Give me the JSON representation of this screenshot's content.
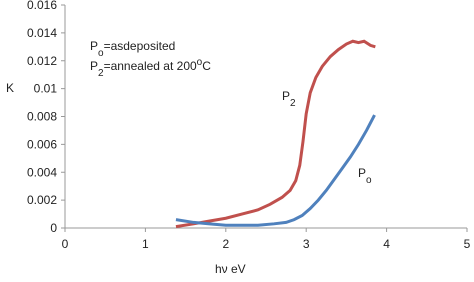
{
  "chart_data": {
    "type": "line",
    "x_label": "hν eV",
    "y_label": "K",
    "xlim": [
      0,
      5
    ],
    "xticks": [
      0,
      1,
      2,
      3,
      4,
      5
    ],
    "ylim": [
      0,
      0.016
    ],
    "yticks": [
      0,
      0.002,
      0.004,
      0.006,
      0.008,
      0.01,
      0.012,
      0.014,
      0.016
    ],
    "grid": false,
    "annotations": [
      {
        "parts": [
          {
            "text": "P"
          },
          {
            "text": "o",
            "shift": "sub"
          },
          {
            "text": "=asdeposited"
          }
        ]
      },
      {
        "parts": [
          {
            "text": "P"
          },
          {
            "text": "2",
            "shift": "sub"
          },
          {
            "text": "=annealed at 200"
          },
          {
            "text": "o",
            "shift": "super"
          },
          {
            "text": "C"
          }
        ]
      }
    ],
    "series": [
      {
        "name": "P2",
        "label_parts": [
          {
            "text": "P"
          },
          {
            "text": "2",
            "shift": "sub"
          }
        ],
        "color": "#c0504d",
        "x": [
          1.38,
          1.6,
          1.8,
          2.0,
          2.2,
          2.4,
          2.55,
          2.7,
          2.8,
          2.87,
          2.92,
          2.96,
          3.0,
          3.05,
          3.12,
          3.2,
          3.3,
          3.4,
          3.5,
          3.58,
          3.65,
          3.72,
          3.8,
          3.86
        ],
        "values": [
          0.0001,
          0.0003,
          0.0005,
          0.0007,
          0.001,
          0.0013,
          0.0017,
          0.0022,
          0.0027,
          0.0034,
          0.0045,
          0.0062,
          0.0082,
          0.0097,
          0.0108,
          0.0116,
          0.0123,
          0.0128,
          0.0132,
          0.0134,
          0.0133,
          0.0134,
          0.0131,
          0.013
        ]
      },
      {
        "name": "Po",
        "label_parts": [
          {
            "text": "P"
          },
          {
            "text": "o",
            "shift": "sub"
          }
        ],
        "color": "#4f81bd",
        "x": [
          1.38,
          1.6,
          1.8,
          2.0,
          2.2,
          2.4,
          2.6,
          2.75,
          2.85,
          2.95,
          3.05,
          3.15,
          3.25,
          3.35,
          3.45,
          3.55,
          3.65,
          3.75,
          3.85
        ],
        "values": [
          0.0006,
          0.0004,
          0.0003,
          0.0002,
          0.0002,
          0.0002,
          0.0003,
          0.0004,
          0.0006,
          0.0009,
          0.0014,
          0.002,
          0.0027,
          0.0035,
          0.0043,
          0.0051,
          0.006,
          0.007,
          0.0081
        ]
      }
    ]
  }
}
